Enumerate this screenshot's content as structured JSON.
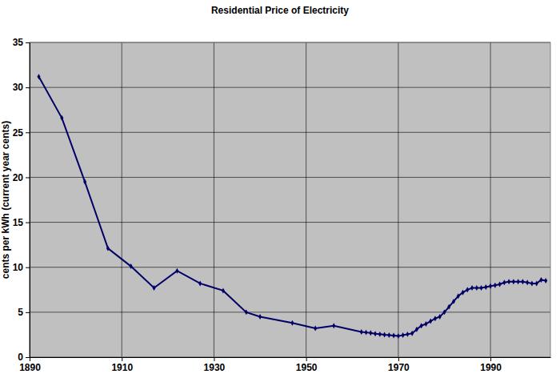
{
  "chart_data": {
    "type": "line",
    "title": "Residential Price of Electricity",
    "y_label": "cents per kWh (current year cents)",
    "x": [
      1892,
      1897,
      1902,
      1907,
      1912,
      1917,
      1922,
      1927,
      1932,
      1937,
      1940,
      1947,
      1952,
      1956,
      1962,
      1963,
      1964,
      1965,
      1966,
      1967,
      1968,
      1969,
      1970,
      1971,
      1972,
      1973,
      1974,
      1975,
      1976,
      1977,
      1978,
      1979,
      1980,
      1981,
      1982,
      1983,
      1984,
      1985,
      1986,
      1987,
      1988,
      1989,
      1990,
      1991,
      1992,
      1993,
      1994,
      1995,
      1996,
      1997,
      1998,
      1999,
      2000,
      2001,
      2002
    ],
    "values": [
      31.2,
      26.6,
      19.5,
      12.1,
      10.1,
      7.7,
      9.6,
      8.2,
      7.4,
      5.0,
      4.5,
      3.8,
      3.2,
      3.5,
      2.8,
      2.75,
      2.7,
      2.6,
      2.55,
      2.5,
      2.45,
      2.4,
      2.35,
      2.45,
      2.55,
      2.65,
      3.1,
      3.5,
      3.7,
      4.0,
      4.3,
      4.5,
      5.0,
      5.6,
      6.2,
      6.8,
      7.2,
      7.5,
      7.7,
      7.7,
      7.7,
      7.8,
      7.9,
      8.0,
      8.1,
      8.3,
      8.4,
      8.4,
      8.4,
      8.4,
      8.3,
      8.2,
      8.2,
      8.6,
      8.5
    ],
    "color": "#000066",
    "marker": "diamond",
    "xlim": [
      1890,
      2003
    ],
    "xticks": [
      1890,
      1910,
      1930,
      1950,
      1970,
      1990
    ],
    "ylim": [
      0,
      35
    ],
    "yticks": [
      0,
      5,
      10,
      15,
      20,
      25,
      30,
      35
    ],
    "grid": true
  }
}
